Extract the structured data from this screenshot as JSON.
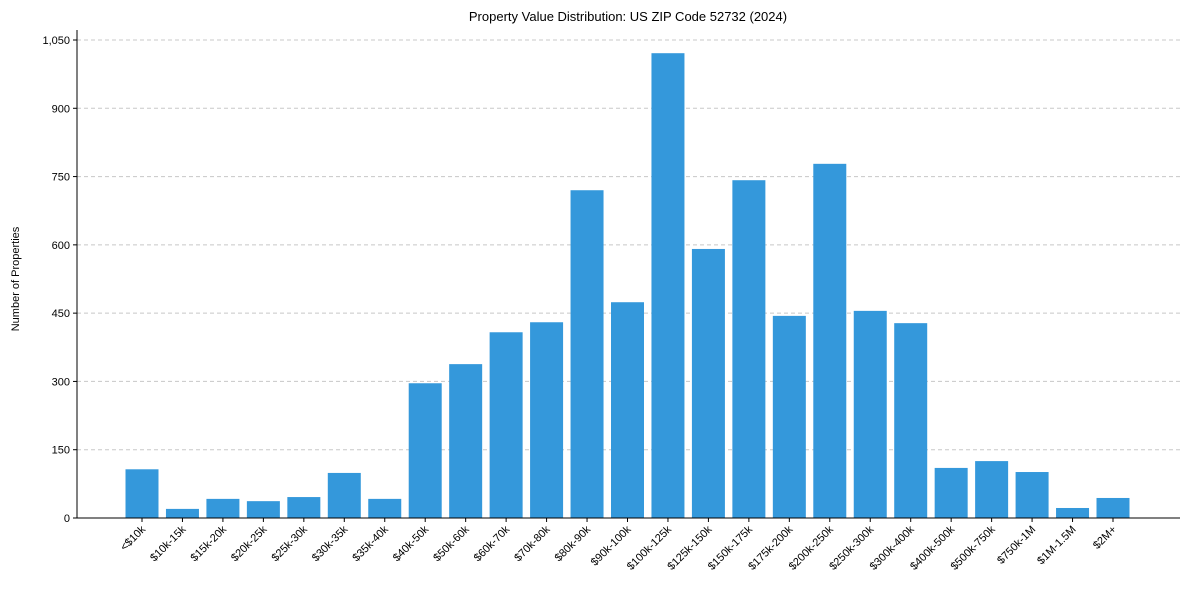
{
  "chart_data": {
    "type": "bar",
    "title": "Property Value Distribution: US ZIP Code 52732 (2024)",
    "xlabel": "",
    "ylabel": "Number of Properties",
    "ylim": [
      0,
      1070
    ],
    "yticks": [
      0,
      150,
      300,
      450,
      600,
      750,
      900,
      1050
    ],
    "ytick_labels": [
      "0",
      "150",
      "300",
      "450",
      "600",
      "750",
      "900",
      "1,050"
    ],
    "grid": "horizontal dashed",
    "bar_color": "#3498db",
    "categories": [
      "<$10k",
      "$10k-15k",
      "$15k-20k",
      "$20k-25k",
      "$25k-30k",
      "$30k-35k",
      "$35k-40k",
      "$40k-50k",
      "$50k-60k",
      "$60k-70k",
      "$70k-80k",
      "$80k-90k",
      "$90k-100k",
      "$100k-125k",
      "$125k-150k",
      "$150k-175k",
      "$175k-200k",
      "$200k-250k",
      "$250k-300k",
      "$300k-400k",
      "$400k-500k",
      "$500k-750k",
      "$750k-1M",
      "$1M-1.5M",
      "$2M+"
    ],
    "values": [
      107,
      20,
      42,
      37,
      46,
      99,
      42,
      296,
      338,
      408,
      430,
      720,
      474,
      1021,
      591,
      742,
      444,
      778,
      455,
      428,
      110,
      125,
      101,
      22,
      44
    ]
  }
}
